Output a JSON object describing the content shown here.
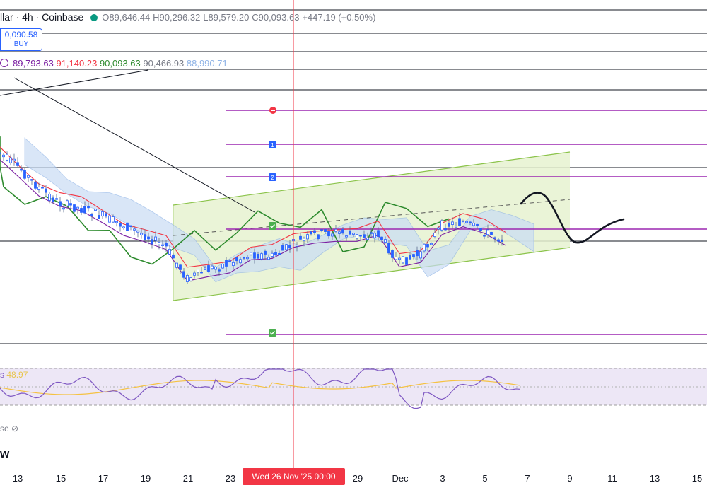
{
  "header": {
    "title": "llar · 4h · Coinbase",
    "open": "O89,646.44",
    "high": "H90,296.32",
    "low": "L89,579.20",
    "close": "C90,093.63",
    "change": "+447.19 (+0.50%)"
  },
  "order": {
    "price": "0,090.58",
    "side": "BUY"
  },
  "indicator_values": {
    "v1": "89,793.63",
    "v2": "91,140.23",
    "v3": "90,093.63",
    "v4": "90,466.93",
    "v5": "88,990.71"
  },
  "markers": {
    "m1": "1",
    "m2": "2"
  },
  "rsi": {
    "value": "48.97"
  },
  "pane": {
    "label": "se",
    "bottom_label": "w"
  },
  "crosshair": {
    "label": "Wed 26 Nov '25   00:00"
  },
  "x_ticks": [
    "13",
    "15",
    "17",
    "19",
    "21",
    "23",
    "29",
    "Dec",
    "3",
    "5",
    "7",
    "9",
    "11",
    "13",
    "15"
  ],
  "colors": {
    "up": "#089981",
    "down": "#f23645",
    "candle": "#2962ff",
    "tenkan": "#f23645",
    "kijun": "#7b1fa2",
    "chikou": "#2e8b2e",
    "channel": "#8bc34a",
    "target": "#9c27b0",
    "rsi": "#7e57c2",
    "rsi_ma": "#f5c242"
  },
  "chart_data": {
    "type": "candlestick",
    "symbol_partial": "llar",
    "interval": "4h",
    "exchange": "Coinbase",
    "x_axis_dates": [
      "Nov 13",
      "Nov 15",
      "Nov 17",
      "Nov 19",
      "Nov 21",
      "Nov 23",
      "Nov 29",
      "Dec 1",
      "Dec 3",
      "Dec 5",
      "Dec 7",
      "Dec 9",
      "Dec 11",
      "Dec 13",
      "Dec 15"
    ],
    "ohlc_last": {
      "open": 89646.44,
      "high": 90296.32,
      "low": 89579.2,
      "close": 90093.63
    },
    "indicators": [
      89793.63,
      91140.23,
      90093.63,
      90466.93,
      88990.71
    ],
    "rsi_value": 48.97,
    "close_series": [
      {
        "d": "Nov 12",
        "v": 104500
      },
      {
        "d": "Nov 13",
        "v": 102000
      },
      {
        "d": "Nov 14",
        "v": 98500
      },
      {
        "d": "Nov 15",
        "v": 96000
      },
      {
        "d": "Nov 16",
        "v": 95200
      },
      {
        "d": "Nov 17",
        "v": 94000
      },
      {
        "d": "Nov 18",
        "v": 92500
      },
      {
        "d": "Nov 19",
        "v": 91000
      },
      {
        "d": "Nov 20",
        "v": 89000
      },
      {
        "d": "Nov 21",
        "v": 84000
      },
      {
        "d": "Nov 22",
        "v": 85500
      },
      {
        "d": "Nov 23",
        "v": 86500
      },
      {
        "d": "Nov 24",
        "v": 88000
      },
      {
        "d": "Nov 25",
        "v": 87500
      },
      {
        "d": "Nov 26",
        "v": 89500
      },
      {
        "d": "Nov 27",
        "v": 91000
      },
      {
        "d": "Nov 28",
        "v": 91500
      },
      {
        "d": "Nov 29",
        "v": 90800
      },
      {
        "d": "Nov 30",
        "v": 91200
      },
      {
        "d": "Dec 1",
        "v": 86500
      },
      {
        "d": "Dec 2",
        "v": 88000
      },
      {
        "d": "Dec 3",
        "v": 92500
      },
      {
        "d": "Dec 4",
        "v": 93000
      },
      {
        "d": "Dec 5",
        "v": 91500
      },
      {
        "d": "Dec 6",
        "v": 90093.63
      }
    ]
  }
}
